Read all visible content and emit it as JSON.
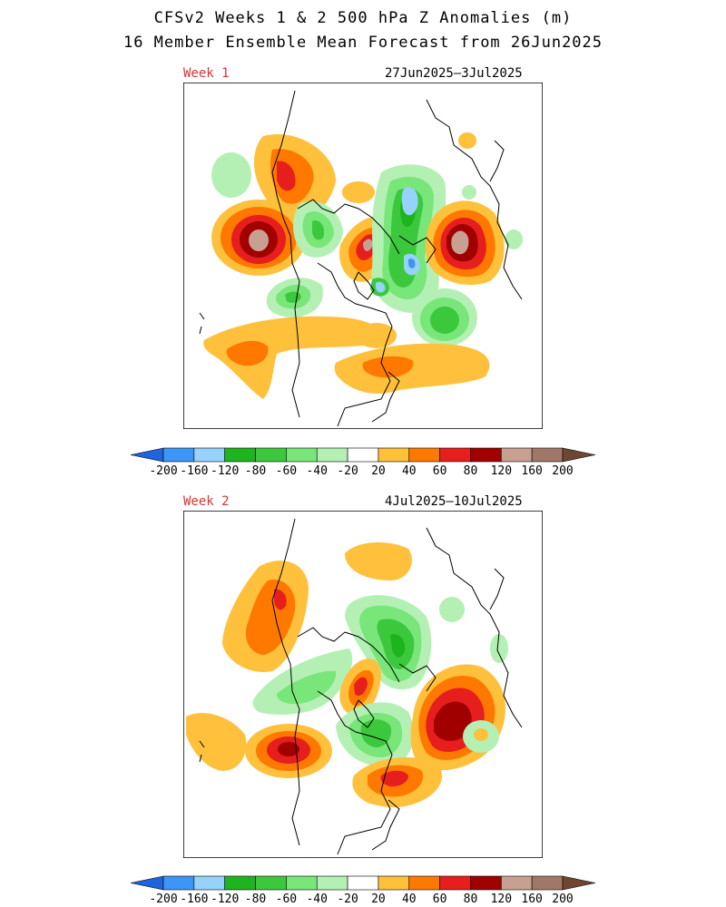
{
  "title_line1": "CFSv2 Weeks 1 & 2 500 hPa Z Anomalies (m)",
  "title_line2": "16 Member Ensemble Mean Forecast from 26Jun2025",
  "panels": [
    {
      "label": "Week 1",
      "dates": "27Jun2025–3Jul2025"
    },
    {
      "label": "Week 2",
      "dates": "4Jul2025–10Jul2025"
    }
  ],
  "colorbar": {
    "ticks": [
      "-200",
      "-160",
      "-120",
      "-80",
      "-60",
      "-40",
      "-20",
      "20",
      "40",
      "60",
      "80",
      "120",
      "160",
      "200"
    ],
    "colors": [
      "#1e64dc",
      "#3c96f5",
      "#96d2fa",
      "#1eb41e",
      "#3cc83c",
      "#78e678",
      "#b4f0b4",
      "#ffffff",
      "#ffc03c",
      "#ff7800",
      "#e61e1e",
      "#a00000",
      "#c8a092",
      "#a07868",
      "#6e4632"
    ]
  },
  "legend_colors": {
    "strong_negative": "#3c96f5",
    "negative_pale": "#96d2fa",
    "neg_120": "#1eb41e",
    "neg_60": "#3cc83c",
    "neg_40": "#78e678",
    "neg_20": "#b4f0b4",
    "pos_20": "#ffc03c",
    "pos_40": "#ff7800",
    "pos_60": "#e61e1e",
    "pos_80": "#a00000",
    "pos_120": "#c8a092"
  }
}
